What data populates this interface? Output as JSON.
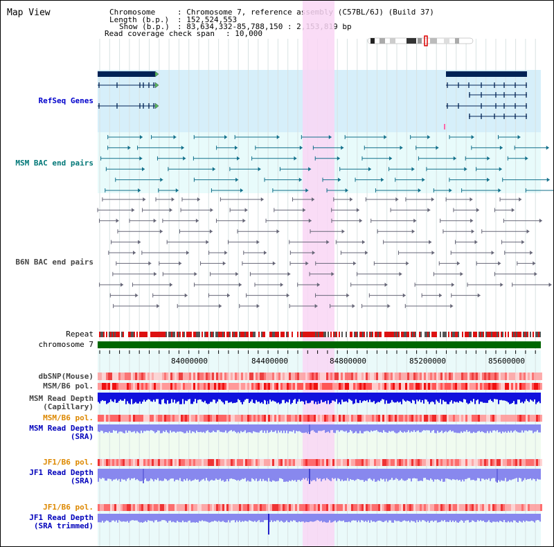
{
  "title": "Map View",
  "header": {
    "chromosome_key": "Chromosome",
    "chromosome_val": ": Chromosome 7, reference assembly (C57BL/6J) (Build 37)",
    "length_key": "Length (b.p.)",
    "length_val": ": 152,524,553",
    "show_key": "Show (b.p.)",
    "show_val": ": 83,634,332-85,788,150 : 2,153,819 bp",
    "coverage_key": "Read coverage check span",
    "coverage_val": ": 10,000"
  },
  "tracks": {
    "refseq": "RefSeq Genes",
    "msm_bac": "MSM BAC end pairs",
    "b6n_bac": "B6N BAC end pairs",
    "repeat": "Repeat",
    "chromosome": "chromosome 7",
    "dbsnp": "dbSNP(Mouse)",
    "msm_b6_pol_1": "MSM/B6 pol.",
    "msm_read_depth_cap": "MSM Read Depth\n(Capillary)",
    "msm_b6_pol_2": "MSM/B6 pol.",
    "msm_read_depth_sra": "MSM Read Depth\n(SRA)",
    "jf1_b6_pol_1": "JF1/B6 pol.",
    "jf1_read_depth_sra": "JF1 Read Depth\n(SRA)",
    "jf1_b6_pol_2": "JF1/B6 pol.",
    "jf1_read_depth_trim": "JF1 Read Depth\n(SRA trimmed)"
  },
  "axis": {
    "ticks": [
      "84000000",
      "84400000",
      "84800000",
      "85200000",
      "85600000"
    ],
    "range_bp": [
      83634332,
      85788150
    ]
  },
  "colors": {
    "refseq_bg": "#d6effa",
    "bac_bg": "#e8fbfb",
    "highlight": "#f9d6f4",
    "chromosome_bar": "#006600",
    "gene": "#002255",
    "depth_dark": "#1111dd",
    "depth_light": "#8888ee",
    "pol": "#ff6666"
  }
}
